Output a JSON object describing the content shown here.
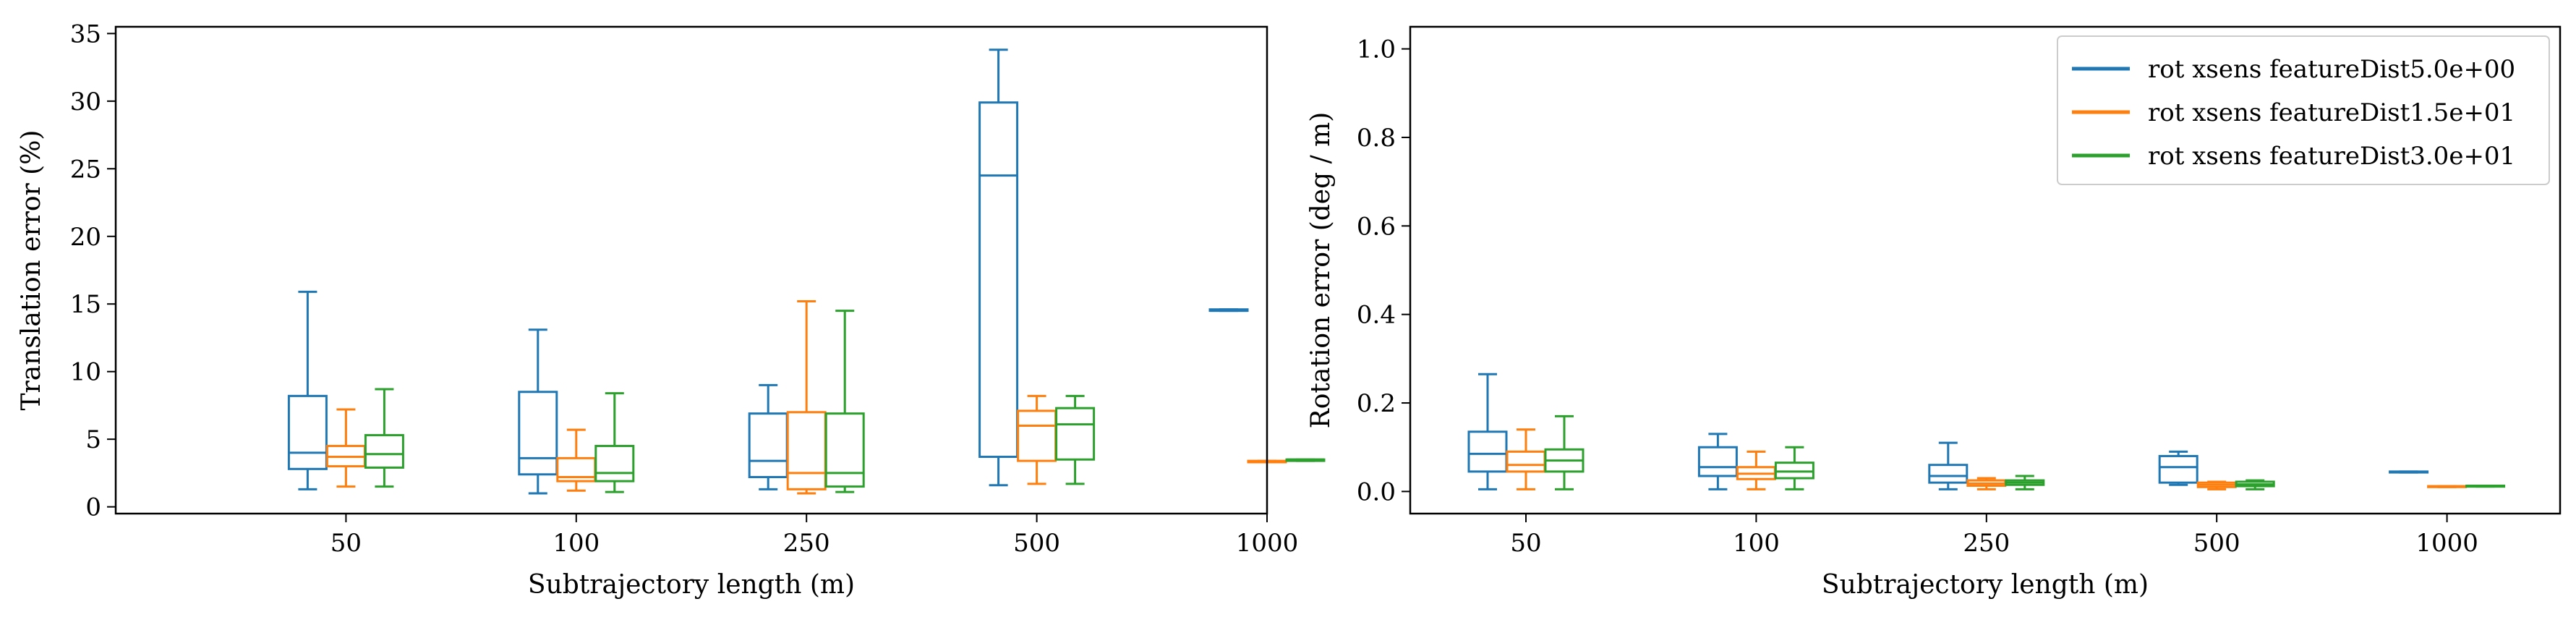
{
  "chart_data": [
    {
      "type": "box",
      "xlabel": "Subtrajectory length (m)",
      "ylabel": "Translation error (%)",
      "categories": [
        "50",
        "100",
        "250",
        "500",
        "1000"
      ],
      "ylim": [
        -0.5,
        35.5
      ],
      "yticks": [
        0,
        5,
        10,
        15,
        20,
        25,
        30,
        35
      ],
      "grid": false,
      "series": [
        {
          "name": "rot xsens featureDist5.0e+00",
          "color": "#1f77b4",
          "boxes": [
            {
              "whislo": 1.3,
              "q1": 2.8,
              "med": 4.0,
              "q3": 8.2,
              "whishi": 15.9
            },
            {
              "whislo": 1.0,
              "q1": 2.4,
              "med": 3.6,
              "q3": 8.5,
              "whishi": 13.1
            },
            {
              "whislo": 1.3,
              "q1": 2.2,
              "med": 3.4,
              "q3": 6.9,
              "whishi": 9.0
            },
            {
              "whislo": 1.6,
              "q1": 3.7,
              "med": 24.5,
              "q3": 29.9,
              "whishi": 33.8
            },
            {
              "whislo": 14.5,
              "q1": 14.5,
              "med": 14.5,
              "q3": 14.6,
              "whishi": 14.6
            }
          ]
        },
        {
          "name": "rot xsens featureDist1.5e+01",
          "color": "#ff7f0e",
          "boxes": [
            {
              "whislo": 1.5,
              "q1": 3.0,
              "med": 3.7,
              "q3": 4.5,
              "whishi": 7.2
            },
            {
              "whislo": 1.2,
              "q1": 1.9,
              "med": 2.2,
              "q3": 3.6,
              "whishi": 5.7
            },
            {
              "whislo": 1.0,
              "q1": 1.3,
              "med": 2.5,
              "q3": 7.0,
              "whishi": 15.2
            },
            {
              "whislo": 1.7,
              "q1": 3.4,
              "med": 6.0,
              "q3": 7.1,
              "whishi": 8.2
            },
            {
              "whislo": 3.3,
              "q1": 3.3,
              "med": 3.3,
              "q3": 3.4,
              "whishi": 3.4
            }
          ]
        },
        {
          "name": "rot xsens featureDist3.0e+01",
          "color": "#2ca02c",
          "boxes": [
            {
              "whislo": 1.5,
              "q1": 2.9,
              "med": 3.9,
              "q3": 5.3,
              "whishi": 8.7
            },
            {
              "whislo": 1.1,
              "q1": 1.9,
              "med": 2.5,
              "q3": 4.5,
              "whishi": 8.4
            },
            {
              "whislo": 1.1,
              "q1": 1.5,
              "med": 2.5,
              "q3": 6.9,
              "whishi": 14.5
            },
            {
              "whislo": 1.7,
              "q1": 3.5,
              "med": 6.1,
              "q3": 7.3,
              "whishi": 8.2
            },
            {
              "whislo": 3.4,
              "q1": 3.4,
              "med": 3.5,
              "q3": 3.5,
              "whishi": 3.5
            }
          ]
        }
      ]
    },
    {
      "type": "box",
      "xlabel": "Subtrajectory length (m)",
      "ylabel": "Rotation error (deg / m)",
      "categories": [
        "50",
        "100",
        "250",
        "500",
        "1000"
      ],
      "ylim": [
        -0.05,
        1.05
      ],
      "yticks": [
        0.0,
        0.2,
        0.4,
        0.6,
        0.8,
        1.0
      ],
      "grid": false,
      "legend_position": "top-right",
      "series": [
        {
          "name": "rot xsens featureDist5.0e+00",
          "color": "#1f77b4",
          "boxes": [
            {
              "whislo": 0.005,
              "q1": 0.045,
              "med": 0.085,
              "q3": 0.135,
              "whishi": 0.265
            },
            {
              "whislo": 0.005,
              "q1": 0.035,
              "med": 0.055,
              "q3": 0.1,
              "whishi": 0.13
            },
            {
              "whislo": 0.005,
              "q1": 0.02,
              "med": 0.035,
              "q3": 0.06,
              "whishi": 0.11
            },
            {
              "whislo": 0.015,
              "q1": 0.02,
              "med": 0.055,
              "q3": 0.08,
              "whishi": 0.09
            },
            {
              "whislo": 0.043,
              "q1": 0.043,
              "med": 0.044,
              "q3": 0.045,
              "whishi": 0.045
            }
          ]
        },
        {
          "name": "rot xsens featureDist1.5e+01",
          "color": "#ff7f0e",
          "boxes": [
            {
              "whislo": 0.005,
              "q1": 0.045,
              "med": 0.06,
              "q3": 0.09,
              "whishi": 0.14
            },
            {
              "whislo": 0.005,
              "q1": 0.028,
              "med": 0.04,
              "q3": 0.055,
              "whishi": 0.09
            },
            {
              "whislo": 0.005,
              "q1": 0.013,
              "med": 0.018,
              "q3": 0.025,
              "whishi": 0.03
            },
            {
              "whislo": 0.005,
              "q1": 0.01,
              "med": 0.015,
              "q3": 0.02,
              "whishi": 0.022
            },
            {
              "whislo": 0.01,
              "q1": 0.01,
              "med": 0.011,
              "q3": 0.012,
              "whishi": 0.012
            }
          ]
        },
        {
          "name": "rot xsens featureDist3.0e+01",
          "color": "#2ca02c",
          "boxes": [
            {
              "whislo": 0.005,
              "q1": 0.045,
              "med": 0.07,
              "q3": 0.095,
              "whishi": 0.17
            },
            {
              "whislo": 0.005,
              "q1": 0.03,
              "med": 0.045,
              "q3": 0.065,
              "whishi": 0.1
            },
            {
              "whislo": 0.005,
              "q1": 0.015,
              "med": 0.02,
              "q3": 0.025,
              "whishi": 0.035
            },
            {
              "whislo": 0.005,
              "q1": 0.012,
              "med": 0.016,
              "q3": 0.022,
              "whishi": 0.025
            },
            {
              "whislo": 0.011,
              "q1": 0.011,
              "med": 0.012,
              "q3": 0.013,
              "whishi": 0.013
            }
          ]
        }
      ]
    }
  ]
}
